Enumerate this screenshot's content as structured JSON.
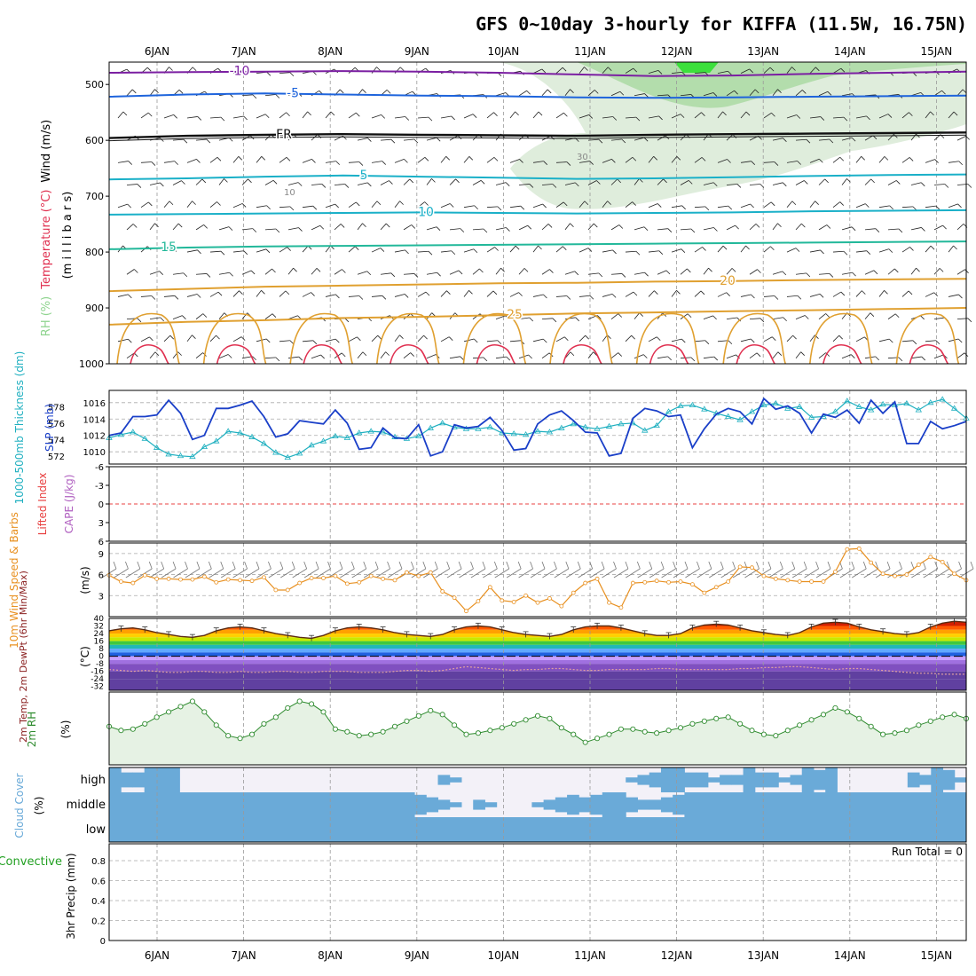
{
  "title": "GFS 0~10day 3-hourly for KIFFA (11.5W, 16.75N)",
  "dates": [
    "6JAN",
    "7JAN",
    "8JAN",
    "9JAN",
    "10JAN",
    "11JAN",
    "12JAN",
    "13JAN",
    "14JAN",
    "15JAN"
  ],
  "colors": {
    "temp_cold": "#7b1fa2",
    "temp_blue": "#1e64dc",
    "freezing": "#111111",
    "temp_teal": "#1ab0c8",
    "temp_green": "#22b89a",
    "temp_orange": "#e0a030",
    "temp_red": "#e03050",
    "rh_green": "#8fd48f",
    "slp": "#1a3fc8",
    "thickness": "#20b0c0",
    "lifted_index": "#e84040",
    "wind10m": "#e89020",
    "rh2m": "#2e8b2e",
    "cloud": "#6aaad8",
    "precip_total": "#22a022",
    "precip_conv": "#e02020"
  },
  "chart_data": [
    {
      "type": "contour",
      "panel": "upper-air",
      "ylabel_parts": [
        "Wind (m/s)",
        "Temperature (°C)",
        "RH (%)"
      ],
      "ylabel_unit": "(m i l l i b a r s)",
      "yticks": [
        "500",
        "600",
        "700",
        "800",
        "900",
        "1000"
      ],
      "isotherm_labels": [
        "-10",
        "-5",
        "FR",
        "5",
        "10",
        "15",
        "20",
        "25"
      ],
      "rh_labels": [
        "10",
        "30"
      ],
      "isotherms": [
        {
          "label": "-10",
          "color_key": "temp_cold",
          "levels": [
            479,
            478,
            477,
            476,
            477,
            479,
            482,
            485,
            484,
            481,
            479,
            477
          ]
        },
        {
          "label": "-5",
          "color_key": "temp_blue",
          "levels": [
            522,
            518,
            516,
            518,
            520,
            521,
            523,
            524,
            523,
            522,
            521,
            520
          ]
        },
        {
          "label": "FR",
          "color_key": "freezing",
          "levels": [
            596,
            592,
            590,
            589,
            590,
            591,
            592,
            590,
            589,
            588,
            587,
            586
          ]
        },
        {
          "label": "5",
          "color_key": "temp_teal",
          "levels": [
            670,
            668,
            665,
            663,
            665,
            667,
            669,
            668,
            666,
            664,
            662,
            661
          ]
        },
        {
          "label": "10",
          "color_key": "temp_teal",
          "levels": [
            733,
            732,
            731,
            730,
            729,
            730,
            731,
            730,
            729,
            727,
            726,
            725
          ]
        },
        {
          "label": "15",
          "color_key": "temp_green",
          "levels": [
            795,
            792,
            790,
            789,
            788,
            787,
            786,
            785,
            784,
            783,
            782,
            781
          ]
        },
        {
          "label": "20",
          "color_key": "temp_orange",
          "levels": [
            870,
            866,
            862,
            860,
            858,
            856,
            855,
            853,
            852,
            850,
            849,
            848
          ]
        },
        {
          "label": "25",
          "color_key": "temp_orange",
          "levels": [
            930,
            925,
            922,
            918,
            916,
            913,
            910,
            908,
            906,
            904,
            902,
            900
          ]
        }
      ]
    },
    {
      "type": "line",
      "panel": "slp-thickness",
      "ylabel_left": "1000-500mb Thickness (dm)",
      "ylabel_right": "SLP (mb)",
      "left_ticks": [
        "578",
        "576",
        "574",
        "572"
      ],
      "right_ticks": [
        "1016",
        "1014",
        "1012",
        "1010"
      ],
      "series": [
        {
          "name": "SLP",
          "values": [
            1012,
            1012.3,
            1014.3,
            1014.3,
            1014.5,
            1016.3,
            1014.7,
            1011.5,
            1012,
            1015.3,
            1015.3,
            1015.7,
            1016.2,
            1014.3,
            1011.8,
            1012.2,
            1013.8,
            1013.6,
            1013.4,
            1015.1,
            1013.5,
            1010.3,
            1010.5,
            1012.9,
            1011.7,
            1011.6,
            1013.3,
            1009.5,
            1010,
            1013.3,
            1012.9,
            1013.1,
            1014.2,
            1012.6,
            1010.2,
            1010.4,
            1013.4,
            1014.5,
            1015,
            1013.8,
            1012.4,
            1012.3,
            1009.5,
            1009.8,
            1014.1,
            1015.3,
            1015,
            1014.3,
            1014.5,
            1010.5,
            1012.8,
            1014.6,
            1015.3,
            1014.9,
            1013.4,
            1016.5,
            1015.2,
            1015.6,
            1014.7,
            1012.3,
            1014.6,
            1014.2,
            1015.1,
            1013.5,
            1016.3,
            1014.7,
            1016.1,
            1011,
            1011,
            1013.7,
            1012.8,
            1013.2,
            1013.7
          ]
        },
        {
          "name": "Thickness",
          "values": [
            574.2,
            574.6,
            574.9,
            574.1,
            573,
            572.2,
            572,
            571.9,
            573.1,
            573.8,
            575,
            574.8,
            574.3,
            573.5,
            572.4,
            571.8,
            572.3,
            573.3,
            573.8,
            574.4,
            574.2,
            574.8,
            575,
            574.9,
            574.3,
            574.1,
            574.4,
            575.4,
            576,
            575.5,
            575.3,
            575.3,
            575.5,
            574.8,
            574.7,
            574.6,
            575,
            574.9,
            575.4,
            575.9,
            575.5,
            575.3,
            575.6,
            575.9,
            576,
            575.1,
            575.7,
            577.4,
            578.1,
            578.2,
            577.7,
            577.2,
            576.8,
            576.4,
            577.4,
            578.2,
            578.4,
            577.8,
            578,
            576.7,
            576.8,
            577.4,
            578.7,
            578,
            577.6,
            578.3,
            578.2,
            578.4,
            577.6,
            578.5,
            578.9,
            577.8,
            576.6
          ]
        }
      ]
    },
    {
      "type": "line",
      "panel": "stability",
      "ylabel_left": "Lifted Index",
      "ylabel_right": "CAPE (J/kg)",
      "yticks": [
        "-6",
        "-3",
        "0",
        "3",
        "6"
      ],
      "series": [
        {
          "name": "Lifted Index",
          "values": []
        }
      ]
    },
    {
      "type": "line",
      "panel": "wind10m",
      "ylabel": "10m Wind Speed & Barbs",
      "ylabel_right": "(m/s)",
      "yticks": [
        "9",
        "6",
        "3"
      ],
      "series": [
        {
          "name": "10m Wind Speed",
          "values": [
            5.9,
            5,
            4.8,
            5.9,
            5.4,
            5.4,
            5.3,
            5.3,
            5.7,
            4.9,
            5.3,
            5.2,
            5.1,
            5.6,
            3.8,
            3.8,
            4.8,
            5.5,
            5.5,
            5.8,
            4.7,
            4.9,
            5.8,
            5.4,
            5.2,
            6.3,
            5.8,
            6.3,
            3.6,
            2.7,
            0.8,
            2.2,
            4.2,
            2.3,
            2.1,
            3,
            2,
            2.6,
            1.5,
            3.4,
            4.8,
            5.4,
            2,
            1.3,
            4.8,
            4.9,
            5.1,
            4.9,
            5,
            4.6,
            3.4,
            4.2,
            5,
            7.1,
            7,
            5.8,
            5.4,
            5.2,
            5,
            5,
            5,
            6.4,
            9.6,
            9.7,
            7.7,
            6.1,
            5.8,
            6,
            7.4,
            8.5,
            7.8,
            6.1,
            5.2
          ]
        }
      ]
    },
    {
      "type": "area",
      "panel": "temperature",
      "ylabel": "2m Temp, 2m DewPt (6hr Min/Max)",
      "ylabel_right": "(°C)",
      "yticks": [
        "40",
        "32",
        "24",
        "16",
        "8",
        "0",
        "-8",
        "-16",
        "-24",
        "-32"
      ],
      "series": [
        {
          "name": "2m Temp",
          "values": [
            27,
            29,
            30,
            28,
            25,
            23,
            21,
            20,
            22,
            27,
            30,
            31,
            30,
            27,
            24,
            22,
            20,
            19,
            22,
            27,
            30,
            31,
            30,
            28,
            25,
            23,
            22,
            21,
            23,
            28,
            31,
            32,
            31,
            28,
            25,
            23,
            22,
            21,
            23,
            28,
            31,
            32,
            32,
            30,
            27,
            24,
            22,
            22,
            24,
            30,
            33,
            34,
            33,
            30,
            27,
            25,
            23,
            22,
            25,
            31,
            35,
            36,
            35,
            31,
            28,
            26,
            24,
            23,
            25,
            31,
            35,
            37,
            36
          ]
        },
        {
          "name": "2m DewPt",
          "values": [
            -14,
            -15,
            -16,
            -15,
            -16,
            -17,
            -17,
            -16,
            -16,
            -17,
            -17,
            -16,
            -17,
            -17,
            -16,
            -16,
            -17,
            -17,
            -16,
            -16,
            -16,
            -17,
            -17,
            -17,
            -16,
            -15,
            -15,
            -16,
            -15,
            -13,
            -11,
            -12,
            -13,
            -14,
            -15,
            -14,
            -14,
            -13,
            -13,
            -14,
            -15,
            -15,
            -14,
            -14,
            -14,
            -14,
            -13,
            -13,
            -14,
            -14,
            -14,
            -14,
            -14,
            -13,
            -13,
            -12,
            -12,
            -11,
            -11,
            -12,
            -13,
            -14,
            -13,
            -13,
            -14,
            -15,
            -16,
            -17,
            -18,
            -18,
            -19,
            -19,
            -19
          ]
        }
      ]
    },
    {
      "type": "line",
      "panel": "rh2m",
      "ylabel": "2m RH",
      "ylabel_right": "(%)",
      "series": [
        {
          "name": "2m RH",
          "values": [
            34,
            31,
            32,
            36,
            41,
            45,
            49,
            53,
            45,
            35,
            27,
            25,
            28,
            36,
            41,
            48,
            53,
            51,
            45,
            32,
            30,
            27,
            28,
            30,
            34,
            38,
            42,
            46,
            43,
            35,
            28,
            29,
            31,
            33,
            36,
            39,
            42,
            40,
            33,
            28,
            22,
            25,
            28,
            32,
            32,
            30,
            29,
            31,
            33,
            36,
            38,
            40,
            41,
            36,
            31,
            28,
            27,
            31,
            35,
            39,
            43,
            48,
            45,
            40,
            34,
            28,
            29,
            31,
            35,
            38,
            41,
            43,
            40
          ]
        }
      ]
    },
    {
      "type": "area",
      "panel": "cloud-cover",
      "ylabel": "Cloud Cover",
      "ylabel_right": "(%)",
      "rows": [
        "high",
        "middle",
        "low"
      ],
      "series": [
        {
          "name": "high",
          "values": [
            100,
            60,
            60,
            100,
            100,
            100,
            0,
            0,
            0,
            0,
            0,
            0,
            0,
            0,
            0,
            0,
            0,
            0,
            0,
            0,
            0,
            0,
            0,
            0,
            0,
            0,
            0,
            0,
            40,
            20,
            0,
            0,
            0,
            0,
            0,
            0,
            0,
            0,
            0,
            0,
            0,
            0,
            0,
            0,
            20,
            40,
            60,
            100,
            100,
            60,
            60,
            20,
            40,
            40,
            100,
            60,
            60,
            20,
            40,
            100,
            80,
            100,
            0,
            0,
            0,
            0,
            0,
            0,
            60,
            40,
            100,
            80,
            20
          ]
        },
        {
          "name": "middle",
          "values": [
            100,
            100,
            100,
            100,
            100,
            100,
            100,
            100,
            100,
            100,
            100,
            100,
            100,
            100,
            100,
            100,
            100,
            100,
            100,
            100,
            100,
            100,
            100,
            100,
            100,
            100,
            80,
            60,
            40,
            20,
            0,
            40,
            20,
            0,
            0,
            0,
            20,
            40,
            60,
            80,
            60,
            80,
            100,
            100,
            60,
            40,
            40,
            60,
            80,
            100,
            100,
            100,
            100,
            100,
            100,
            100,
            100,
            100,
            100,
            100,
            100,
            100,
            100,
            100,
            100,
            100,
            100,
            100,
            100,
            100,
            100,
            100,
            100
          ]
        },
        {
          "name": "low",
          "values": [
            100,
            100,
            100,
            100,
            100,
            100,
            100,
            100,
            100,
            100,
            100,
            100,
            100,
            100,
            100,
            100,
            100,
            100,
            100,
            100,
            100,
            100,
            100,
            100,
            100,
            100,
            100,
            100,
            100,
            100,
            100,
            100,
            100,
            100,
            100,
            100,
            100,
            100,
            100,
            100,
            100,
            100,
            100,
            100,
            100,
            100,
            100,
            100,
            100,
            100,
            100,
            100,
            100,
            100,
            100,
            100,
            100,
            100,
            100,
            100,
            100,
            100,
            100,
            100,
            100,
            100,
            100,
            100,
            100,
            100,
            100,
            100,
            100
          ]
        }
      ]
    },
    {
      "type": "bar",
      "panel": "precip",
      "ylabel_left": "Total / Rain Convective",
      "ylabel_right": "3hr Precip (mm)",
      "yticks": [
        "0.8",
        "0.6",
        "0.4",
        "0.2",
        "0"
      ],
      "annotation": "Run Total = 0",
      "series": [
        {
          "name": "3hr Precip",
          "values": []
        }
      ]
    }
  ]
}
